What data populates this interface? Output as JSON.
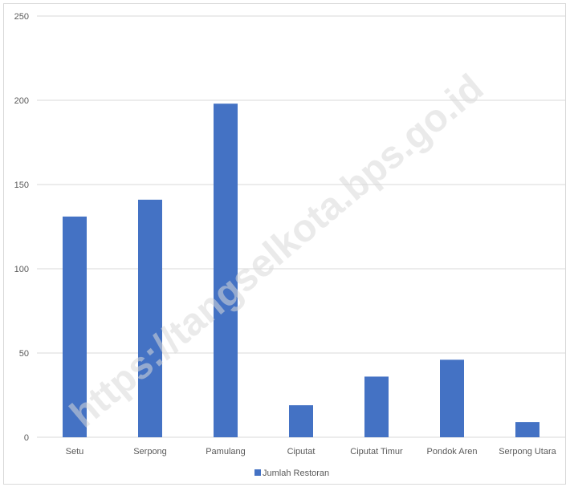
{
  "chart_data": {
    "type": "bar",
    "categories": [
      "Setu",
      "Serpong",
      "Pamulang",
      "Ciputat",
      "Ciputat Timur",
      "Pondok Aren",
      "Serpong Utara"
    ],
    "series": [
      {
        "name": "Jumlah Restoran",
        "values": [
          131,
          141,
          198,
          19,
          36,
          46,
          9
        ],
        "color": "#4472c4"
      }
    ],
    "title": "",
    "xlabel": "",
    "ylabel": "",
    "ylim": [
      0,
      250
    ],
    "yticks": [
      0,
      50,
      100,
      150,
      200,
      250
    ],
    "grid": true,
    "legend_position": "bottom"
  },
  "watermark": "https://tangselkota.bps.go.id"
}
